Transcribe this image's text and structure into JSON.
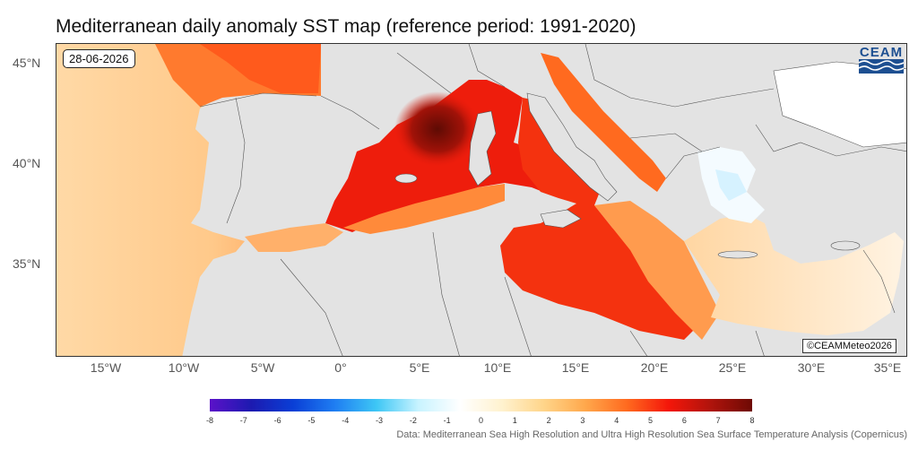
{
  "title": "Mediterranean daily anomaly SST map (reference period: 1991-2020)",
  "date": "28-06-2026",
  "logo_text": "CEAM",
  "copyright": "©CEAMMeteo2026",
  "lat_labels": [
    "45°N",
    "40°N",
    "35°N"
  ],
  "lon_labels": [
    "15°W",
    "10°W",
    "5°W",
    "0°",
    "5°E",
    "10°E",
    "15°E",
    "20°E",
    "25°E",
    "30°E",
    "35°E"
  ],
  "colorbar": {
    "ticks": [
      "-8",
      "-7",
      "-6",
      "-5",
      "-4",
      "-3",
      "-2",
      "-1",
      "0",
      "1",
      "2",
      "3",
      "4",
      "5",
      "6",
      "7",
      "8"
    ],
    "colors": [
      "#5b12c9",
      "#1c1ab0",
      "#0a3fd6",
      "#1f7ef2",
      "#3ec7f5",
      "#c8f3ff",
      "#ffffff",
      "#fff2cf",
      "#ffd58a",
      "#ffa84c",
      "#ff6a1f",
      "#f4160a",
      "#b0140c",
      "#6e0a04"
    ]
  },
  "source": "Data: Mediterranean Sea High Resolution and Ultra High Resolution Sea Surface Temperature Analysis (Copernicus)",
  "colors": {
    "land": "#e3e3e3",
    "border": "#555555",
    "anomaly_hot": "#ee1d0c",
    "anomaly_warm": "#ff8f3a",
    "anomaly_mild": "#ffd49a",
    "anomaly_near_zero": "#fff4e2"
  }
}
